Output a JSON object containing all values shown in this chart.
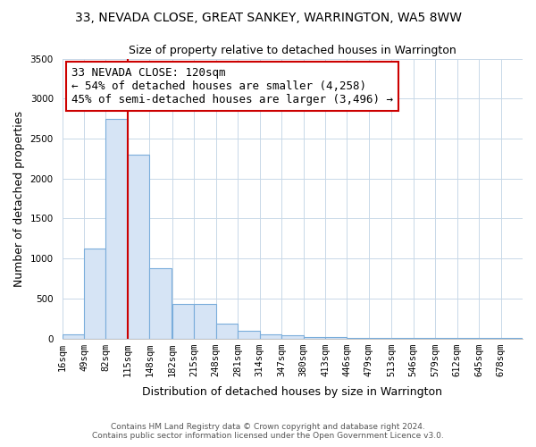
{
  "title": "33, NEVADA CLOSE, GREAT SANKEY, WARRINGTON, WA5 8WW",
  "subtitle": "Size of property relative to detached houses in Warrington",
  "xlabel": "Distribution of detached houses by size in Warrington",
  "ylabel": "Number of detached properties",
  "bar_color": "#d6e4f5",
  "bar_edge_color": "#7aaddb",
  "vline_color": "#cc0000",
  "vline_x": 115,
  "annotation_text": "33 NEVADA CLOSE: 120sqm\n← 54% of detached houses are smaller (4,258)\n45% of semi-detached houses are larger (3,496) →",
  "annotation_box_color": "#cc0000",
  "footnote1": "Contains HM Land Registry data © Crown copyright and database right 2024.",
  "footnote2": "Contains public sector information licensed under the Open Government Licence v3.0.",
  "bin_starts": [
    16,
    49,
    82,
    115,
    148,
    182,
    215,
    248,
    281,
    314,
    347,
    380,
    413,
    446,
    479,
    513,
    546,
    579,
    612,
    645,
    678
  ],
  "bin_labels": [
    "16sqm",
    "49sqm",
    "82sqm",
    "115sqm",
    "148sqm",
    "182sqm",
    "215sqm",
    "248sqm",
    "281sqm",
    "314sqm",
    "347sqm",
    "380sqm",
    "413sqm",
    "446sqm",
    "479sqm",
    "513sqm",
    "546sqm",
    "579sqm",
    "612sqm",
    "645sqm",
    "678sqm"
  ],
  "counts": [
    50,
    1120,
    2750,
    2300,
    880,
    430,
    430,
    185,
    90,
    55,
    45,
    20,
    15,
    10,
    5,
    3,
    2,
    2,
    1,
    1,
    1
  ],
  "ylim": [
    0,
    3500
  ],
  "yticks": [
    0,
    500,
    1000,
    1500,
    2000,
    2500,
    3000,
    3500
  ],
  "grid_color": "#c8d8e8",
  "background_color": "#ffffff",
  "title_fontsize": 10,
  "subtitle_fontsize": 9,
  "xlabel_fontsize": 9,
  "ylabel_fontsize": 9,
  "tick_fontsize": 7.5
}
